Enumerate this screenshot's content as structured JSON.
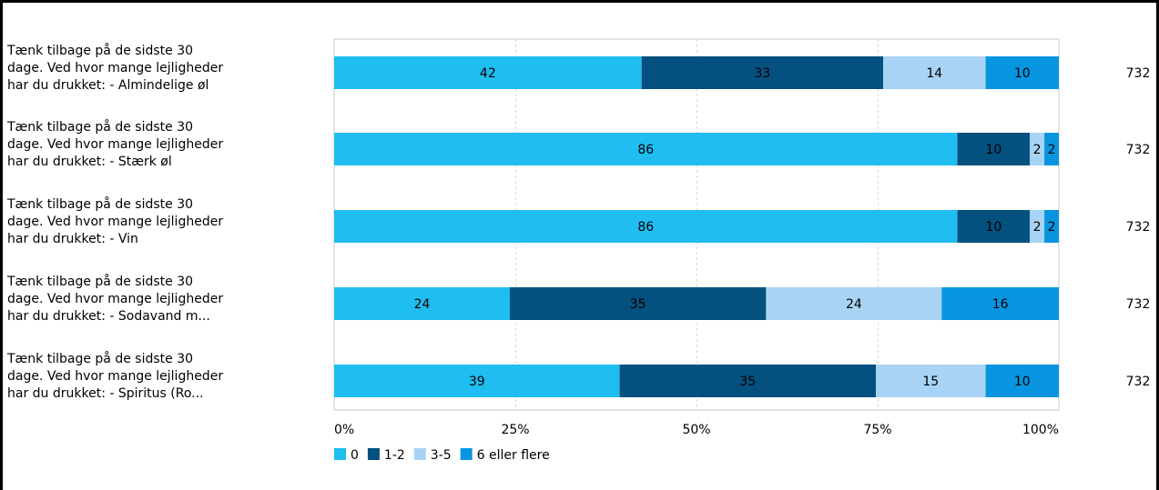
{
  "chart_data": {
    "type": "bar",
    "orientation": "horizontal",
    "stacked": true,
    "categories": [
      [
        "Tænk tilbage på de sidste 30",
        "dage. Ved hvor mange lejligheder",
        "har du drukket: - Almindelige øl"
      ],
      [
        "Tænk tilbage på de sidste 30",
        "dage. Ved hvor mange lejligheder",
        "har du drukket: - Stærk øl"
      ],
      [
        "Tænk tilbage på de sidste 30",
        "dage. Ved hvor mange lejligheder",
        "har du drukket: - Vin"
      ],
      [
        "Tænk tilbage på de sidste 30",
        "dage. Ved hvor mange lejligheder",
        "har du drukket: - Sodavand m..."
      ],
      [
        "Tænk tilbage på de sidste 30",
        "dage. Ved hvor mange lejligheder",
        "har du drukket: - Spiritus (Ro..."
      ]
    ],
    "series": [
      {
        "name": "0",
        "color": "#1fbdf0",
        "values": [
          42,
          86,
          86,
          24,
          39
        ]
      },
      {
        "name": "1-2",
        "color": "#04507e",
        "values": [
          33,
          10,
          10,
          35,
          35
        ]
      },
      {
        "name": "3-5",
        "color": "#a8d3f4",
        "values": [
          14,
          2,
          2,
          24,
          15
        ]
      },
      {
        "name": "6 eller flere",
        "color": "#0895e0",
        "values": [
          10,
          2,
          2,
          16,
          10
        ]
      }
    ],
    "n_values": [
      "732",
      "732",
      "732",
      "732",
      "732"
    ],
    "xlim": [
      0,
      100
    ],
    "x_ticks": [
      "0%",
      "25%",
      "50%",
      "75%",
      "100%"
    ],
    "grid": true,
    "legend_position": "bottom-left"
  }
}
